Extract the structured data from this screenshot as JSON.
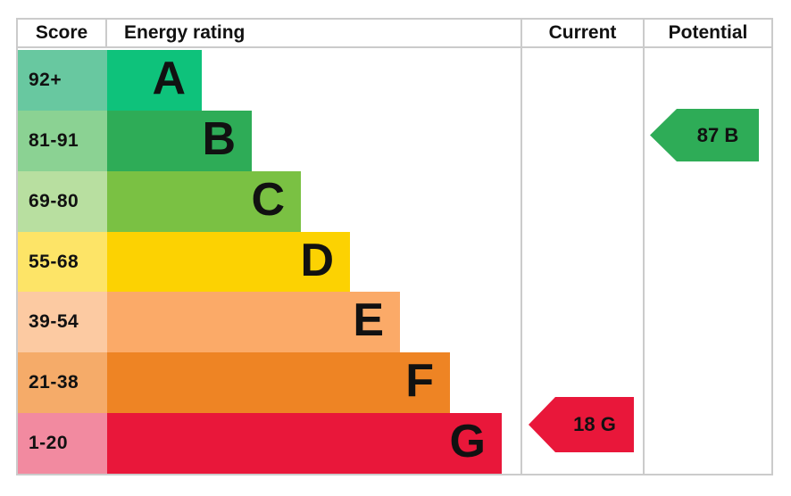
{
  "table": {
    "headers": {
      "score": "Score",
      "energy_rating": "Energy rating",
      "current": "Current",
      "potential": "Potential"
    }
  },
  "colors": {
    "border": "#cbcbcb",
    "background": "#ffffff",
    "text": "#111111",
    "current_arrow": "#e9173a",
    "potential_arrow": "#2eac57"
  },
  "chart_data": {
    "type": "bar",
    "subtype": "epc-energy-rating-ladder",
    "columns": [
      "Score",
      "Energy rating",
      "Current",
      "Potential"
    ],
    "bands": [
      {
        "letter": "A",
        "range": "92+",
        "score_min": 92,
        "score_max": 100,
        "bar_color": "#0ec27b",
        "cell_color": "#68c8a0"
      },
      {
        "letter": "B",
        "range": "81-91",
        "score_min": 81,
        "score_max": 91,
        "bar_color": "#2eac57",
        "cell_color": "#8bd293"
      },
      {
        "letter": "C",
        "range": "69-80",
        "score_min": 69,
        "score_max": 80,
        "bar_color": "#7ac143",
        "cell_color": "#b8dfa0"
      },
      {
        "letter": "D",
        "range": "55-68",
        "score_min": 55,
        "score_max": 68,
        "bar_color": "#fcd202",
        "cell_color": "#fde467"
      },
      {
        "letter": "E",
        "range": "39-54",
        "score_min": 39,
        "score_max": 54,
        "bar_color": "#fbaa68",
        "cell_color": "#fccaa2"
      },
      {
        "letter": "F",
        "range": "21-38",
        "score_min": 21,
        "score_max": 38,
        "bar_color": "#ee8424",
        "cell_color": "#f5ab69"
      },
      {
        "letter": "G",
        "range": "1-20",
        "score_min": 1,
        "score_max": 20,
        "bar_color": "#e9173a",
        "cell_color": "#f28aa0"
      }
    ],
    "markers": {
      "current": {
        "label": "18 G",
        "value": 18,
        "band": "G",
        "color": "#e9173a"
      },
      "potential": {
        "label": "87 B",
        "value": 87,
        "band": "B",
        "color": "#2eac57"
      }
    }
  }
}
